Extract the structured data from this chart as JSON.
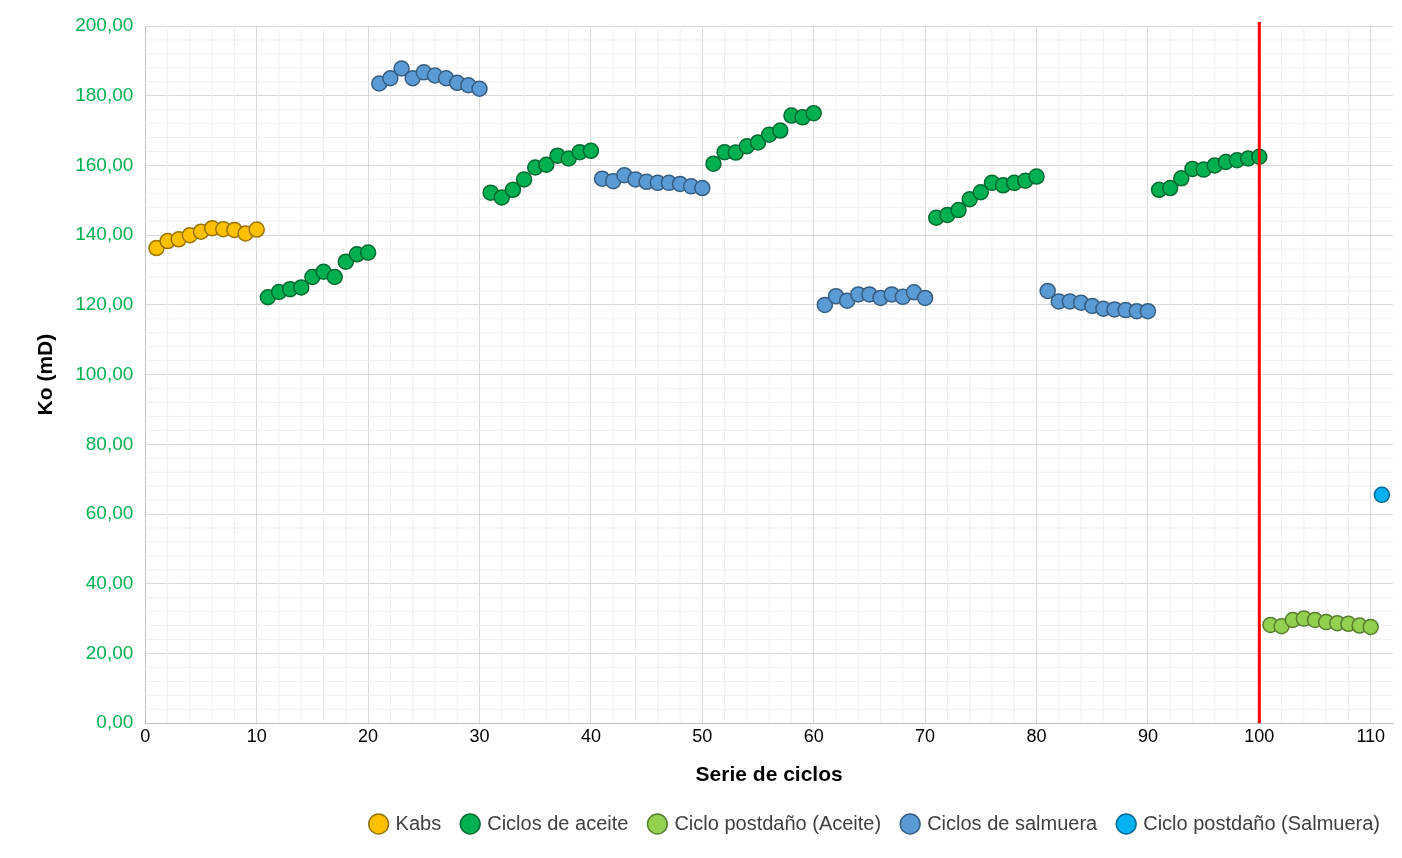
{
  "chart_data": {
    "type": "scatter",
    "xlabel": "Serie de ciclos",
    "ylabel": "Ko (mD)",
    "xlim": [
      0,
      112
    ],
    "xticks": [
      0,
      10,
      20,
      30,
      40,
      50,
      60,
      70,
      80,
      90,
      100,
      110
    ],
    "ylim": [
      0,
      200
    ],
    "yticks": [
      {
        "value": 0,
        "label": "0,00"
      },
      {
        "value": 20,
        "label": "20,00"
      },
      {
        "value": 40,
        "label": "40,00"
      },
      {
        "value": 60,
        "label": "60,00"
      },
      {
        "value": 80,
        "label": "80,00"
      },
      {
        "value": 100,
        "label": "100,00"
      },
      {
        "value": 120,
        "label": "120,00"
      },
      {
        "value": 140,
        "label": "140,00"
      },
      {
        "value": 160,
        "label": "160,00"
      },
      {
        "value": 180,
        "label": "180,00"
      },
      {
        "value": 200,
        "label": "200,00"
      }
    ],
    "grid": true,
    "legend": "bottom",
    "marker": "circle",
    "ref_lines": [
      {
        "axis": "x",
        "value": 100,
        "color": "#ff0000"
      }
    ],
    "series": [
      {
        "name": "Kabs",
        "color": "#ffc000",
        "x": [
          1,
          2,
          3,
          4,
          5,
          6,
          7,
          8,
          9,
          10
        ],
        "values": [
          136.3,
          138.3,
          138.8,
          140,
          141,
          142,
          141.7,
          141.5,
          140.5,
          141.6
        ]
      },
      {
        "name": "Ciclos de aceite",
        "color": "#00b050",
        "x": [
          11,
          12,
          13,
          14,
          15,
          16,
          17,
          18,
          19,
          20,
          31,
          32,
          33,
          34,
          35,
          36,
          37,
          38,
          39,
          40,
          51,
          52,
          53,
          54,
          55,
          56,
          57,
          58,
          59,
          60,
          71,
          72,
          73,
          74,
          75,
          76,
          77,
          78,
          79,
          80,
          91,
          92,
          93,
          94,
          95,
          96,
          97,
          98,
          99,
          100
        ],
        "values": [
          122.2,
          123.7,
          124.5,
          125,
          128,
          129.5,
          128,
          132.4,
          134.5,
          135,
          152.2,
          150.8,
          153,
          156,
          159.4,
          160.2,
          162.8,
          162,
          163.8,
          164.2,
          160.5,
          163.8,
          163.7,
          165.5,
          166.6,
          168.8,
          170,
          174.3,
          173.8,
          175,
          145,
          145.8,
          147.2,
          150.3,
          152.3,
          155,
          154.3,
          155,
          155.6,
          156.8,
          153,
          153.5,
          156.3,
          159,
          158.8,
          160,
          161,
          161.5,
          162,
          162.5
        ]
      },
      {
        "name": "Ciclo postdaño (Aceite)",
        "color": "#92d050",
        "x": [
          101,
          102,
          103,
          104,
          105,
          106,
          107,
          108,
          109,
          110
        ],
        "values": [
          28.2,
          27.8,
          29.6,
          30,
          29.6,
          29,
          28.7,
          28.5,
          28,
          27.6
        ]
      },
      {
        "name": "Ciclos de salmuera",
        "color": "#5b9bd5",
        "x": [
          21,
          22,
          23,
          24,
          25,
          26,
          27,
          28,
          29,
          30,
          41,
          42,
          43,
          44,
          45,
          46,
          47,
          48,
          49,
          50,
          61,
          62,
          63,
          64,
          65,
          66,
          67,
          68,
          69,
          70,
          81,
          82,
          83,
          84,
          85,
          86,
          87,
          88,
          89,
          90
        ],
        "values": [
          183.5,
          185,
          187.8,
          185,
          186.7,
          185.8,
          185,
          183.7,
          183,
          182,
          156.2,
          155.5,
          157.2,
          156,
          155.3,
          155,
          155,
          154.7,
          154,
          153.5,
          120,
          122.5,
          121.2,
          123,
          123,
          122,
          123,
          122.3,
          123.6,
          122,
          124,
          121,
          121,
          120.6,
          119.7,
          118.9,
          118.7,
          118.5,
          118.2,
          118.2
        ]
      },
      {
        "name": "Ciclo postdaño (Salmuera)",
        "color": "#00b0f0",
        "x": [
          111
        ],
        "values": [
          65.5
        ]
      }
    ]
  }
}
